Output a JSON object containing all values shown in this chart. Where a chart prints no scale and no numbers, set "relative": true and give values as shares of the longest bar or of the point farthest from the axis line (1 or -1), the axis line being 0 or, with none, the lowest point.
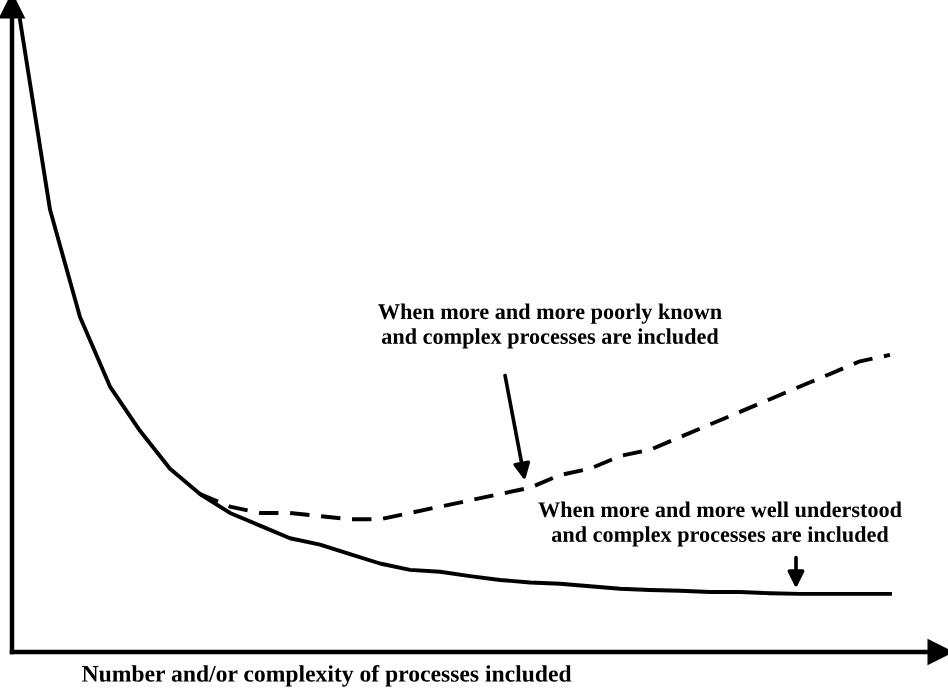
{
  "chart_data": {
    "type": "line",
    "relative": true,
    "xlabel": "Number and/or complexity of processes included",
    "categories": [
      null,
      null,
      null,
      null,
      null,
      null,
      null,
      null,
      null,
      null,
      null,
      null,
      null,
      null,
      null,
      null,
      null,
      null,
      null,
      null,
      null,
      null,
      null,
      null,
      null,
      null,
      null,
      null,
      null,
      null
    ],
    "series": [
      {
        "color": "#000000",
        "line_style": "solid",
        "values": [
          1.0,
          0.7,
          0.53,
          0.42,
          0.35,
          0.29,
          0.25,
          0.22,
          0.2,
          0.18,
          0.17,
          0.155,
          0.14,
          0.13,
          0.127,
          0.12,
          0.114,
          0.11,
          0.108,
          0.104,
          0.1,
          0.098,
          0.097,
          0.095,
          0.095,
          0.093,
          0.092,
          0.092,
          0.092,
          0.092
        ]
      },
      {
        "color": "#000000",
        "line_style": "dashed",
        "values": [
          null,
          null,
          null,
          null,
          null,
          null,
          0.25,
          0.23,
          0.22,
          0.22,
          0.215,
          0.21,
          0.21,
          0.22,
          0.23,
          0.24,
          0.25,
          0.26,
          0.28,
          0.29,
          0.31,
          0.32,
          0.34,
          0.36,
          0.38,
          0.4,
          0.42,
          0.44,
          0.46,
          0.47
        ]
      }
    ],
    "annotations": [
      "When more and more poorly known\nand complex processes are included",
      "When more and more well understood\nand complex processes are included"
    ],
    "marker": "none",
    "grid": false
  }
}
